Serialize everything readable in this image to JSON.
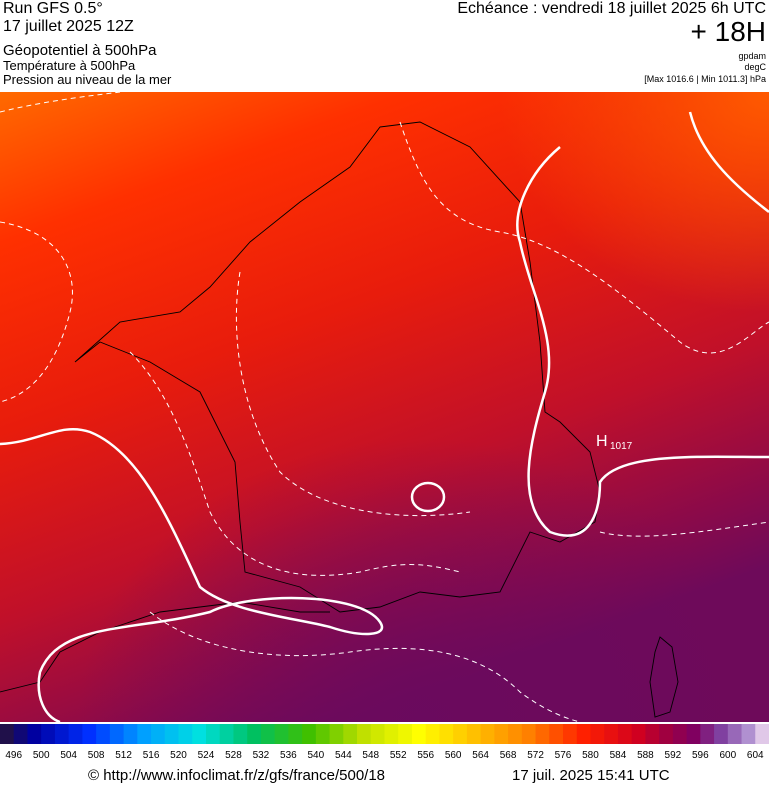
{
  "header": {
    "run": "Run GFS 0.5°",
    "date": "17 juillet 2025 12Z",
    "field1": "Géopotentiel à 500hPa",
    "field2": "Température à 500hPa",
    "field3": "Pression au niveau de la mer",
    "echeance": "Echéance : vendredi 18 juillet 2025 6h UTC",
    "offset": "+ 18H",
    "unit1": "gpdam",
    "unit2": "degC",
    "range": "[Max 1016.6 | Min 1011.3] hPa"
  },
  "map": {
    "high_letter": "H",
    "high_value": "1017"
  },
  "colorbar": {
    "labels": [
      496,
      500,
      504,
      508,
      512,
      516,
      520,
      524,
      528,
      532,
      536,
      540,
      544,
      548,
      552,
      556,
      560,
      564,
      568,
      572,
      576,
      580,
      584,
      588,
      592,
      596,
      600,
      604
    ]
  },
  "footer": {
    "url": "© http://www.infoclimat.fr/z/gfs/france/500/18",
    "timestamp": "17 juil. 2025 15:41 UTC"
  }
}
